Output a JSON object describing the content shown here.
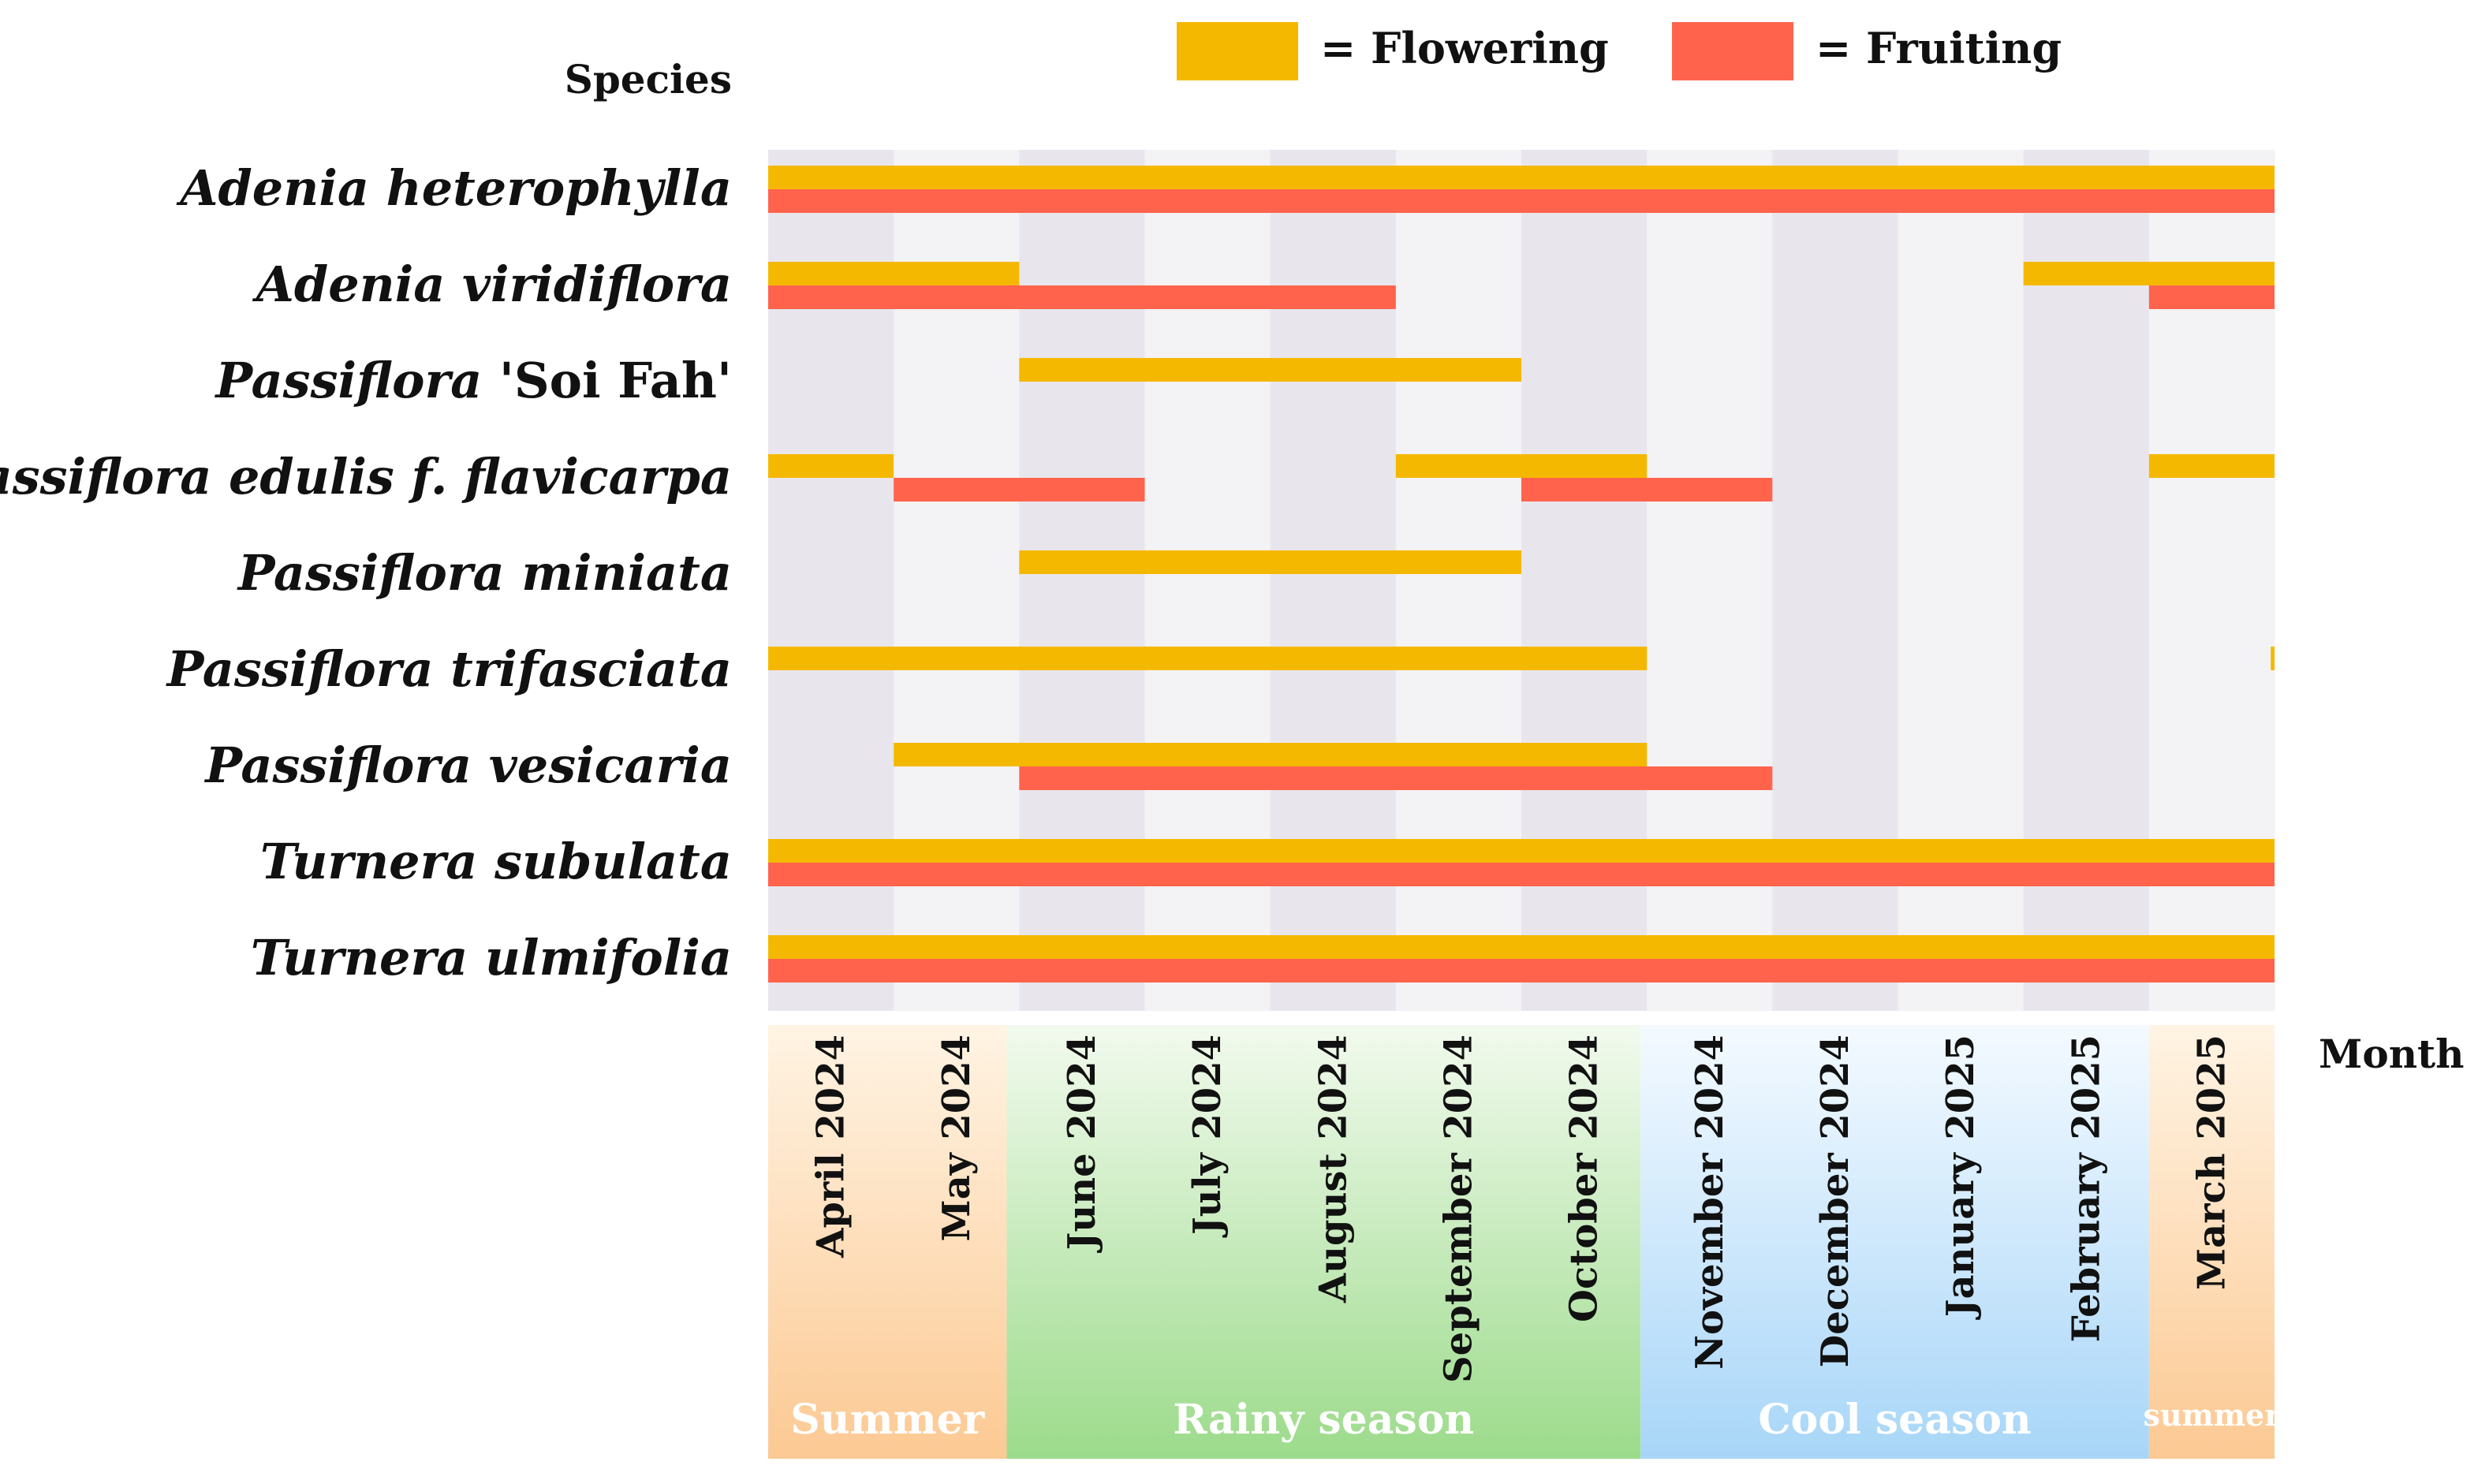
{
  "chart_data": {
    "type": "gantt",
    "title": "",
    "ylabel": "Species",
    "xlabel": "Month",
    "months": [
      "April 2024",
      "May 2024",
      "June 2024",
      "July 2024",
      "August 2024",
      "September 2024",
      "October 2024",
      "November 2024",
      "December 2024",
      "January 2025",
      "February 2025",
      "March 2025"
    ],
    "legend": [
      {
        "key": "flowering",
        "label": "= Flowering",
        "color": "#F5B800"
      },
      {
        "key": "fruiting",
        "label": "= Fruiting",
        "color": "#FF634C"
      }
    ],
    "seasons": [
      {
        "label": "Summer",
        "start": 0,
        "end": 1.9,
        "top_color": "#FFF4E4",
        "bottom_color": "#FCC993",
        "small": false
      },
      {
        "label": "Rainy season",
        "start": 1.9,
        "end": 6.95,
        "top_color": "#F2FAEE",
        "bottom_color": "#9CDB8B",
        "small": false
      },
      {
        "label": "Cool season",
        "start": 6.95,
        "end": 11.0,
        "top_color": "#F4FAFF",
        "bottom_color": "#A8D6F8",
        "small": false
      },
      {
        "label": "summer",
        "start": 11.0,
        "end": 12.0,
        "top_color": "#FFF4E4",
        "bottom_color": "#FCC993",
        "small": true
      }
    ],
    "species": [
      {
        "name": "Adenia heterophylla",
        "italic": "Adenia heterophylla",
        "cultivar": "",
        "flowering": [
          [
            0,
            12
          ]
        ],
        "fruiting": [
          [
            0,
            12
          ]
        ]
      },
      {
        "name": "Adenia viridiflora",
        "italic": "Adenia viridiflora",
        "cultivar": "",
        "flowering": [
          [
            0,
            2
          ],
          [
            10,
            12
          ]
        ],
        "fruiting": [
          [
            0,
            5
          ],
          [
            11,
            12
          ]
        ]
      },
      {
        "name": "Passiflora 'Soi Fah'",
        "italic": "Passiflora",
        "cultivar": " 'Soi Fah'",
        "flowering": [
          [
            2,
            6
          ]
        ],
        "fruiting": []
      },
      {
        "name": "Passiflora edulis f. flavicarpa",
        "italic": "Passiflora edulis f. flavicarpa",
        "cultivar": "",
        "flowering": [
          [
            0,
            1
          ],
          [
            5,
            7
          ],
          [
            11,
            12
          ]
        ],
        "fruiting": [
          [
            1,
            3
          ],
          [
            6,
            8
          ]
        ]
      },
      {
        "name": "Passiflora miniata",
        "italic": "Passiflora miniata",
        "cultivar": "",
        "flowering": [
          [
            2,
            6
          ]
        ],
        "fruiting": []
      },
      {
        "name": "Passiflora trifasciata",
        "italic": "Passiflora trifasciata",
        "cultivar": "",
        "flowering": [
          [
            0,
            7
          ],
          [
            11.97,
            12
          ]
        ],
        "fruiting": []
      },
      {
        "name": "Passiflora vesicaria",
        "italic": "Passiflora vesicaria",
        "cultivar": "",
        "flowering": [
          [
            1,
            7
          ]
        ],
        "fruiting": [
          [
            2,
            8
          ]
        ]
      },
      {
        "name": "Turnera subulata",
        "italic": "Turnera subulata",
        "cultivar": "",
        "flowering": [
          [
            0,
            12
          ]
        ],
        "fruiting": [
          [
            0,
            12
          ]
        ]
      },
      {
        "name": "Turnera ulmifolia",
        "italic": "Turnera ulmifolia",
        "cultivar": "",
        "flowering": [
          [
            0,
            12
          ]
        ],
        "fruiting": [
          [
            0,
            12
          ]
        ]
      }
    ]
  },
  "colors": {
    "column_dark": "#E8E6EC",
    "column_light": "#F3F2F5"
  }
}
